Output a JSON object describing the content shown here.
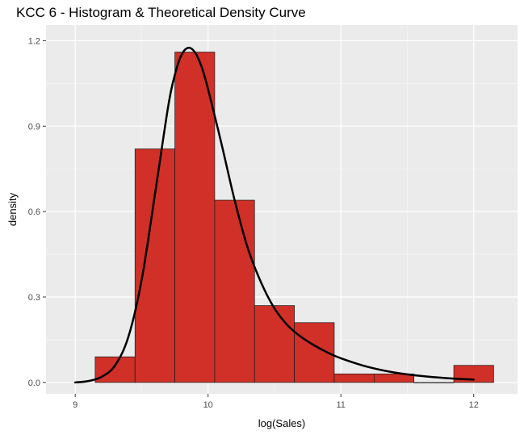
{
  "chart_data": {
    "type": "bar",
    "title": "KCC 6 - Histogram & Theoretical Density Curve",
    "xlabel": "log(Sales)",
    "ylabel": "density",
    "xlim": [
      8.78,
      12.33
    ],
    "ylim": [
      -0.04,
      1.255
    ],
    "x_ticks": [
      9,
      10,
      11,
      12
    ],
    "y_ticks": [
      0.0,
      0.3,
      0.6,
      0.9,
      1.2
    ],
    "y_tick_labels": [
      "0.0",
      "0.3",
      "0.6",
      "0.9",
      "1.2"
    ],
    "grid": true,
    "bar_color": "#d03027",
    "bar_border_color": "#1a1a1a",
    "curve_color": "#000000",
    "panel_color": "#ebebeb",
    "bins": [
      {
        "x0": 9.15,
        "x1": 9.45,
        "density": 0.09
      },
      {
        "x0": 9.45,
        "x1": 9.75,
        "density": 0.82
      },
      {
        "x0": 9.75,
        "x1": 10.05,
        "density": 1.16
      },
      {
        "x0": 10.05,
        "x1": 10.35,
        "density": 0.64
      },
      {
        "x0": 10.35,
        "x1": 10.65,
        "density": 0.27
      },
      {
        "x0": 10.65,
        "x1": 10.95,
        "density": 0.21
      },
      {
        "x0": 10.95,
        "x1": 11.25,
        "density": 0.03
      },
      {
        "x0": 11.25,
        "x1": 11.55,
        "density": 0.03
      },
      {
        "x0": 11.55,
        "x1": 11.85,
        "density": 0.0
      },
      {
        "x0": 11.85,
        "x1": 12.15,
        "density": 0.06
      }
    ],
    "density_curve": {
      "x": [
        9.0,
        9.1,
        9.2,
        9.3,
        9.4,
        9.5,
        9.6,
        9.7,
        9.75,
        9.8,
        9.85,
        9.9,
        9.95,
        10.0,
        10.1,
        10.2,
        10.3,
        10.4,
        10.5,
        10.6,
        10.7,
        10.8,
        10.9,
        11.0,
        11.2,
        11.4,
        11.6,
        11.8,
        12.0
      ],
      "y": [
        0.0,
        0.005,
        0.02,
        0.06,
        0.16,
        0.36,
        0.66,
        0.97,
        1.08,
        1.15,
        1.175,
        1.16,
        1.11,
        1.03,
        0.84,
        0.64,
        0.47,
        0.35,
        0.26,
        0.2,
        0.16,
        0.13,
        0.105,
        0.085,
        0.055,
        0.035,
        0.023,
        0.015,
        0.01
      ]
    }
  }
}
